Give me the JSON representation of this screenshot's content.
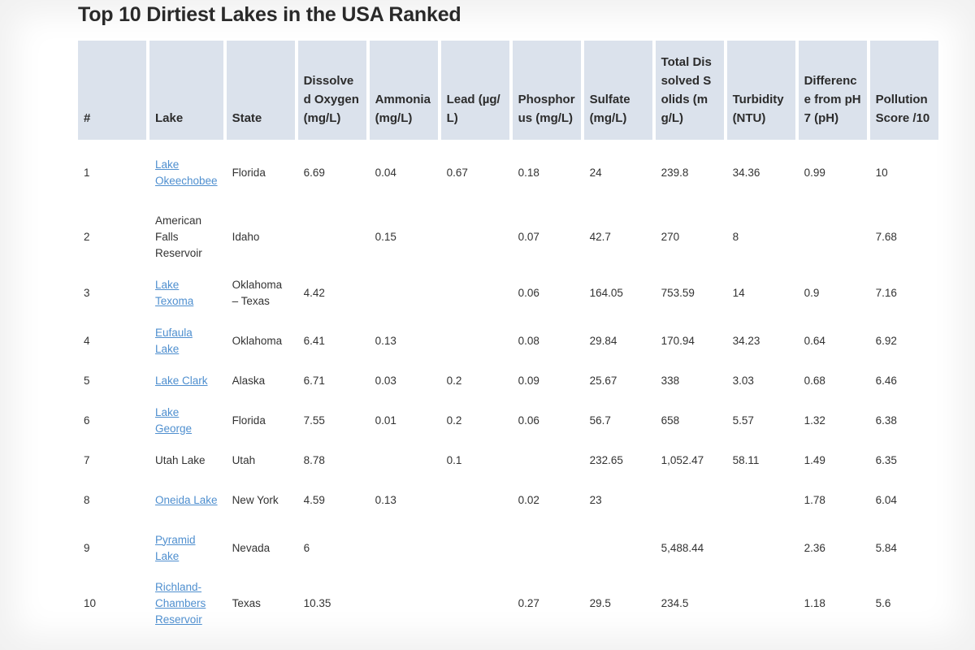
{
  "title": "Top 10 Dirtiest Lakes in the USA Ranked",
  "colors": {
    "header_bg": "#dbe2ec",
    "link": "#4f8fcf",
    "text": "#333333"
  },
  "columns": [
    "#",
    "Lake",
    "State",
    "Dissolved Oxygen (mg/L)",
    "Ammonia (mg/L)",
    "Lead (µg/L)",
    "Phosphorus (mg/L)",
    "Sulfate (mg/L)",
    "Total Dissolved Solids (mg/L)",
    "Turbidity (NTU)",
    "Difference from pH7 (pH)",
    "Pollution Score /10"
  ],
  "rows": [
    {
      "rank": "1",
      "lake": "Lake Okeechobee",
      "lake_is_link": true,
      "state": "Florida",
      "dissolved_oxygen": "6.69",
      "ammonia": "0.04",
      "lead": "0.67",
      "phosphorus": "0.18",
      "sulfate": "24",
      "tds": "239.8",
      "turbidity": "34.36",
      "ph_diff": "0.99",
      "score": "10"
    },
    {
      "rank": "2",
      "lake": "American Falls Reservoir",
      "lake_is_link": false,
      "state": "Idaho",
      "dissolved_oxygen": "",
      "ammonia": "0.15",
      "lead": "",
      "phosphorus": "0.07",
      "sulfate": "42.7",
      "tds": "270",
      "turbidity": "8",
      "ph_diff": "",
      "score": "7.68"
    },
    {
      "rank": "3",
      "lake": "Lake Texoma",
      "lake_is_link": true,
      "state": "Oklahoma – Texas",
      "dissolved_oxygen": "4.42",
      "ammonia": "",
      "lead": "",
      "phosphorus": "0.06",
      "sulfate": "164.05",
      "tds": "753.59",
      "turbidity": "14",
      "ph_diff": "0.9",
      "score": "7.16"
    },
    {
      "rank": "4",
      "lake": "Eufaula Lake",
      "lake_is_link": true,
      "state": "Oklahoma",
      "dissolved_oxygen": "6.41",
      "ammonia": "0.13",
      "lead": "",
      "phosphorus": "0.08",
      "sulfate": "29.84",
      "tds": "170.94",
      "turbidity": "34.23",
      "ph_diff": "0.64",
      "score": "6.92"
    },
    {
      "rank": "5",
      "lake": "Lake Clark",
      "lake_is_link": true,
      "state": "Alaska",
      "dissolved_oxygen": "6.71",
      "ammonia": "0.03",
      "lead": "0.2",
      "phosphorus": "0.09",
      "sulfate": "25.67",
      "tds": "338",
      "turbidity": "3.03",
      "ph_diff": "0.68",
      "score": "6.46"
    },
    {
      "rank": "6",
      "lake": "Lake George",
      "lake_is_link": true,
      "state": "Florida",
      "dissolved_oxygen": "7.55",
      "ammonia": "0.01",
      "lead": "0.2",
      "phosphorus": "0.06",
      "sulfate": "56.7",
      "tds": "658",
      "turbidity": "5.57",
      "ph_diff": "1.32",
      "score": "6.38"
    },
    {
      "rank": "7",
      "lake": "Utah Lake",
      "lake_is_link": false,
      "state": "Utah",
      "dissolved_oxygen": "8.78",
      "ammonia": "",
      "lead": "0.1",
      "phosphorus": "",
      "sulfate": "232.65",
      "tds": "1,052.47",
      "turbidity": "58.11",
      "ph_diff": "1.49",
      "score": "6.35"
    },
    {
      "rank": "8",
      "lake": "Oneida Lake",
      "lake_is_link": true,
      "state": "New York",
      "dissolved_oxygen": "4.59",
      "ammonia": "0.13",
      "lead": "",
      "phosphorus": "0.02",
      "sulfate": "23",
      "tds": "",
      "turbidity": "",
      "ph_diff": "1.78",
      "score": "6.04"
    },
    {
      "rank": "9",
      "lake": "Pyramid Lake",
      "lake_is_link": true,
      "state": "Nevada",
      "dissolved_oxygen": "6",
      "ammonia": "",
      "lead": "",
      "phosphorus": "",
      "sulfate": "",
      "tds": "5,488.44",
      "turbidity": "",
      "ph_diff": "2.36",
      "score": "5.84"
    },
    {
      "rank": "10",
      "lake": "Richland-Chambers Reservoir",
      "lake_is_link": true,
      "state": "Texas",
      "dissolved_oxygen": "10.35",
      "ammonia": "",
      "lead": "",
      "phosphorus": "0.27",
      "sulfate": "29.5",
      "tds": "234.5",
      "turbidity": "",
      "ph_diff": "1.18",
      "score": "5.6"
    }
  ]
}
